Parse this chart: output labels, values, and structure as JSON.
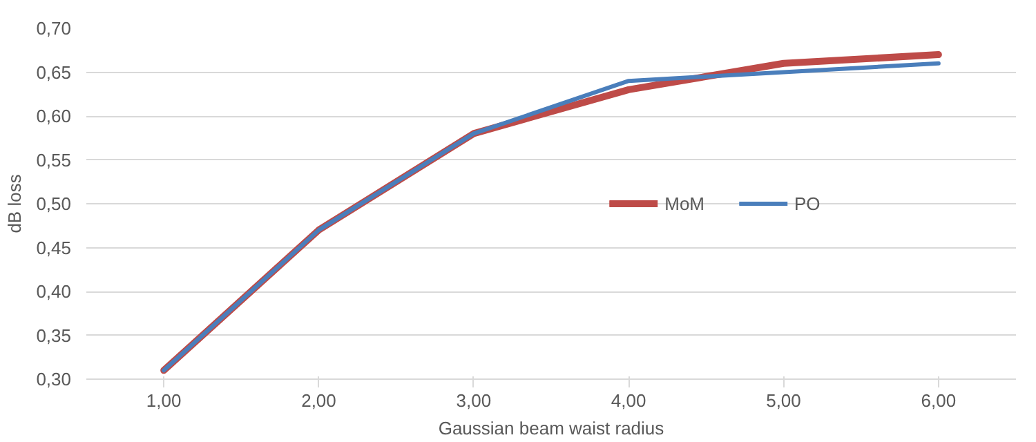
{
  "chart_data": {
    "type": "line",
    "xlabel": "Gaussian beam waist radius",
    "ylabel": "dB loss",
    "categories": [
      "1,00",
      "2,00",
      "3,00",
      "4,00",
      "5,00",
      "6,00"
    ],
    "series": [
      {
        "name": "MoM",
        "color": "#be4b48",
        "values": [
          0.31,
          0.47,
          0.58,
          0.63,
          0.66,
          0.67
        ]
      },
      {
        "name": "PO",
        "color": "#4a7ebb",
        "values": [
          0.31,
          0.47,
          0.58,
          0.64,
          0.65,
          0.66
        ]
      }
    ],
    "ylim": [
      0.3,
      0.7
    ],
    "yticks": [
      {
        "value": 0.3,
        "label": "0,30"
      },
      {
        "value": 0.35,
        "label": "0,35"
      },
      {
        "value": 0.4,
        "label": "0,40"
      },
      {
        "value": 0.45,
        "label": "0,45"
      },
      {
        "value": 0.5,
        "label": "0,50"
      },
      {
        "value": 0.55,
        "label": "0,55"
      },
      {
        "value": 0.6,
        "label": "0,60"
      },
      {
        "value": 0.65,
        "label": "0,65"
      },
      {
        "value": 0.7,
        "label": "0,70"
      }
    ],
    "grid": "y",
    "legend": "right",
    "marker": "none",
    "line_style": "solid"
  }
}
